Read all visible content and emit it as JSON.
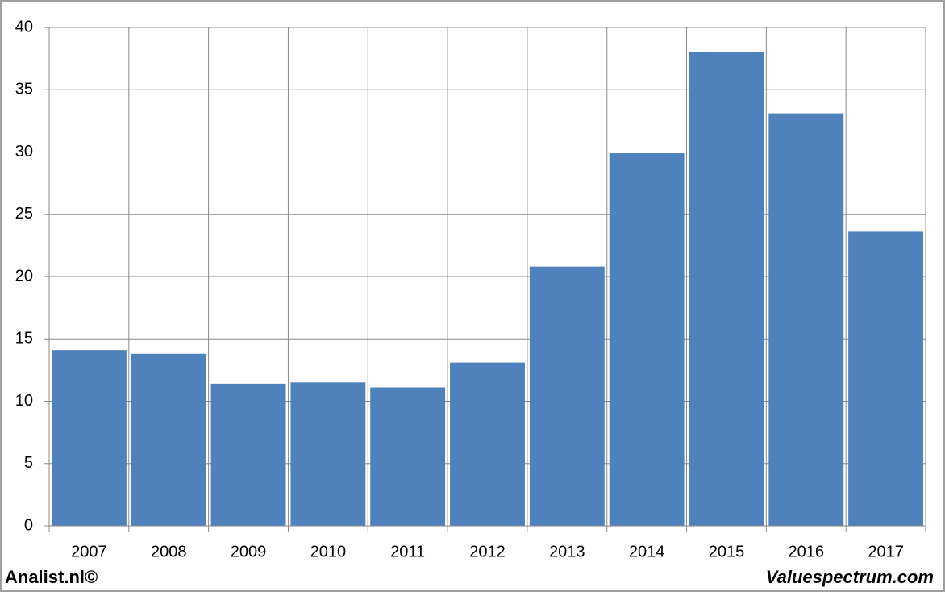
{
  "chart_data": {
    "type": "bar",
    "categories": [
      "2007",
      "2008",
      "2009",
      "2010",
      "2011",
      "2012",
      "2013",
      "2014",
      "2015",
      "2016",
      "2017"
    ],
    "values": [
      14.1,
      13.8,
      11.4,
      11.5,
      11.1,
      13.1,
      20.8,
      29.9,
      38.0,
      33.1,
      23.6
    ],
    "color": "#4f81bd",
    "ylim": [
      0,
      40
    ],
    "yticks": [
      0,
      5,
      10,
      15,
      20,
      25,
      30,
      35,
      40
    ],
    "grid": true
  },
  "footer": {
    "left": "Analist.nl©",
    "right": "Valuespectrum.com"
  }
}
